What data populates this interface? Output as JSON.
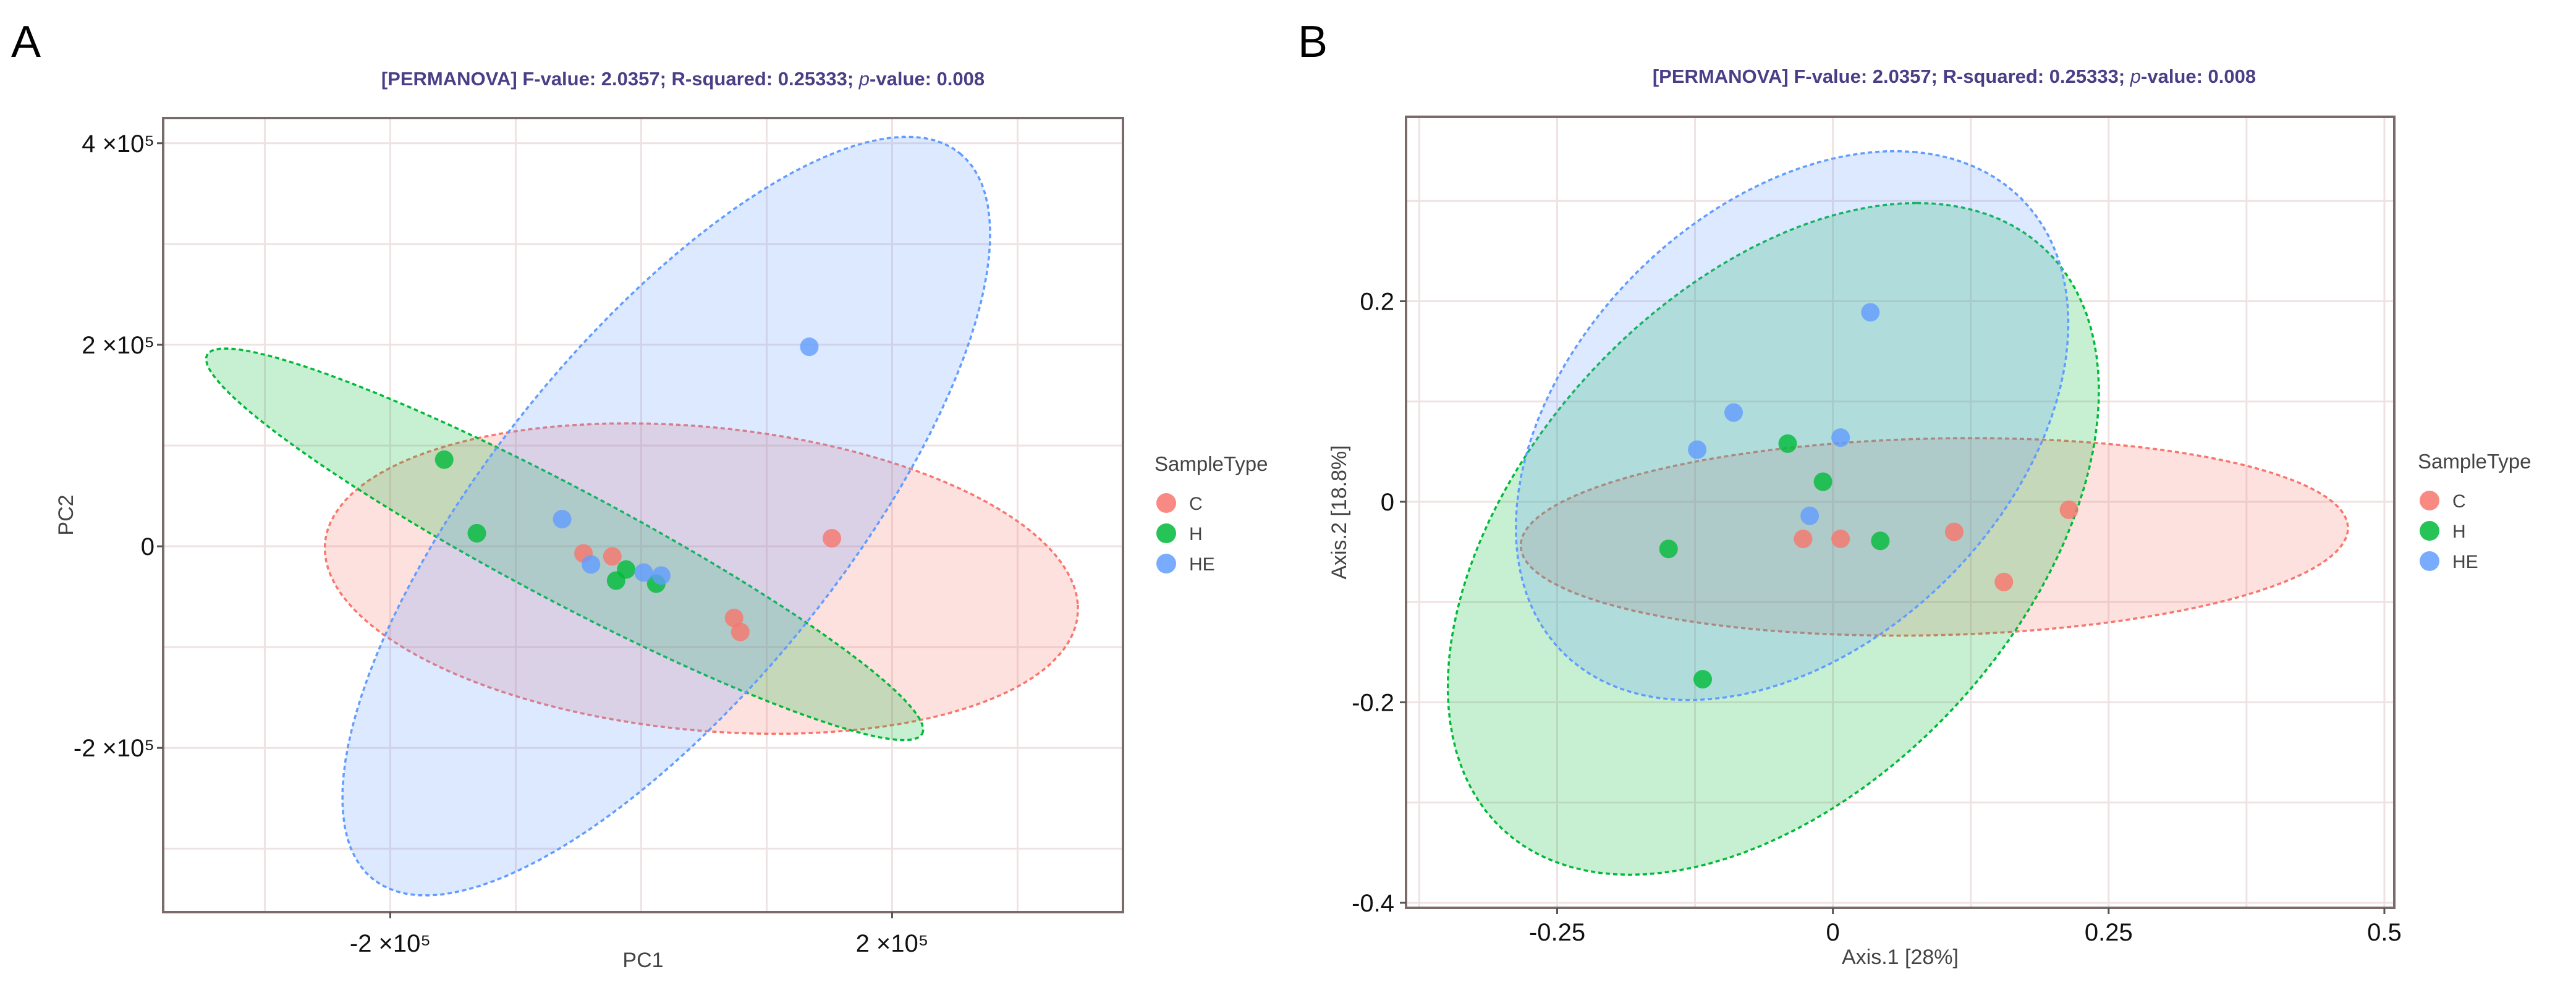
{
  "colors": {
    "C": "#F8766D",
    "H": "#00BA38",
    "HE": "#619CFF",
    "title": "#4a3f86",
    "frame": "#7a6a6a",
    "grid": "#efe2e2"
  },
  "chart_data": [
    {
      "panel_label": "A",
      "type": "scatter",
      "title_parts": [
        "[PERMANOVA] F-value: 2.0357; R-squared: 0.25333; ",
        "p",
        "-value: 0.008"
      ],
      "xlabel": "PC1",
      "ylabel": "PC2",
      "x_unit": 100000,
      "xlim": [
        -3.81,
        3.84
      ],
      "ylim": [
        -3.63,
        4.25
      ],
      "xticks": [
        {
          "v": -2,
          "label": "-2 ×10⁵"
        },
        {
          "v": 2,
          "label": "2 ×10⁵"
        }
      ],
      "yticks": [
        {
          "v": 4,
          "label": "4 ×10⁵"
        },
        {
          "v": 2,
          "label": "2 ×10⁵"
        },
        {
          "v": 0,
          "label": "0"
        },
        {
          "v": -2,
          "label": "-2 ×10⁵"
        }
      ],
      "x_grid": [
        -3,
        -2,
        -1,
        0,
        1,
        2,
        3
      ],
      "y_grid": [
        -3,
        -2,
        -1,
        0,
        1,
        2,
        3,
        4
      ],
      "legend": {
        "title": "SampleType",
        "placement": "right",
        "entries": [
          "C",
          "H",
          "HE"
        ]
      },
      "series": [
        {
          "name": "C",
          "points": [
            [
              -0.46,
              -0.07
            ],
            [
              -0.23,
              -0.1
            ],
            [
              1.52,
              0.08
            ],
            [
              0.74,
              -0.71
            ],
            [
              0.79,
              -0.85
            ]
          ],
          "ellipse": {
            "center": [
              0.48,
              -0.32
            ],
            "a": [
              3.0,
              -0.25
            ],
            "b": [
              -0.1,
              1.52
            ]
          }
        },
        {
          "name": "H",
          "points": [
            [
              -1.57,
              0.86
            ],
            [
              -1.31,
              0.13
            ],
            [
              -0.12,
              -0.23
            ],
            [
              -0.2,
              -0.34
            ],
            [
              0.12,
              -0.37
            ]
          ],
          "ellipse": {
            "center": [
              -0.61,
              0.02
            ],
            "a": [
              2.85,
              -1.88
            ],
            "b": [
              0.21,
              0.49
            ]
          }
        },
        {
          "name": "HE",
          "points": [
            [
              1.34,
              1.98
            ],
            [
              -0.63,
              0.27
            ],
            [
              -0.4,
              -0.18
            ],
            [
              0.02,
              -0.26
            ],
            [
              0.16,
              -0.29
            ]
          ],
          "ellipse": {
            "center": [
              0.2,
              0.3
            ],
            "a": [
              2.34,
              3.6
            ],
            "b": [
              1.09,
              -1.1
            ]
          }
        }
      ]
    },
    {
      "panel_label": "B",
      "type": "scatter",
      "title_parts": [
        "[PERMANOVA] F-value: 2.0357; R-squared: 0.25333; ",
        "p",
        "-value: 0.008"
      ],
      "xlabel": "Axis.1   [28%]",
      "ylabel": "Axis.2   [18.8%]",
      "xlim": [
        -0.387,
        0.509
      ],
      "ylim": [
        -0.405,
        0.384
      ],
      "xticks": [
        {
          "v": -0.25,
          "label": "-0.25"
        },
        {
          "v": 0,
          "label": "0"
        },
        {
          "v": 0.25,
          "label": "0.25"
        },
        {
          "v": 0.5,
          "label": "0.5"
        }
      ],
      "yticks": [
        {
          "v": 0.2,
          "label": "0.2"
        },
        {
          "v": 0,
          "label": "0"
        },
        {
          "v": -0.2,
          "label": "-0.2"
        },
        {
          "v": -0.4,
          "label": "-0.4"
        }
      ],
      "x_grid": [
        -0.375,
        -0.25,
        -0.125,
        0,
        0.125,
        0.25,
        0.375,
        0.5
      ],
      "y_grid": [
        -0.4,
        -0.3,
        -0.2,
        -0.1,
        0,
        0.1,
        0.2,
        0.3
      ],
      "legend": {
        "title": "SampleType",
        "placement": "right",
        "entries": [
          "C",
          "H",
          "HE"
        ]
      },
      "series": [
        {
          "name": "C",
          "points": [
            [
              -0.027,
              -0.037
            ],
            [
              0.007,
              -0.037
            ],
            [
              0.11,
              -0.03
            ],
            [
              0.214,
              -0.008
            ],
            [
              0.155,
              -0.08
            ]
          ],
          "ellipse": {
            "center": [
              0.092,
              -0.035
            ],
            "a": [
              0.375,
              0.01
            ],
            "b": [
              -0.005,
              0.098
            ]
          }
        },
        {
          "name": "H",
          "points": [
            [
              -0.041,
              0.058
            ],
            [
              -0.009,
              0.02
            ],
            [
              -0.149,
              -0.047
            ],
            [
              0.043,
              -0.039
            ],
            [
              -0.118,
              -0.177
            ]
          ],
          "ellipse": {
            "center": [
              -0.054,
              -0.037
            ],
            "a": [
              0.13,
              0.335
            ],
            "b": [
              0.265,
              0.0
            ]
          }
        },
        {
          "name": "HE",
          "points": [
            [
              0.034,
              0.189
            ],
            [
              -0.09,
              0.089
            ],
            [
              -0.123,
              0.052
            ],
            [
              0.007,
              0.064
            ],
            [
              -0.021,
              -0.014
            ]
          ],
          "ellipse": {
            "center": [
              -0.037,
              0.076
            ],
            "a": [
              0.11,
              0.273
            ],
            "b": [
              0.225,
              -0.02
            ]
          }
        }
      ]
    }
  ]
}
